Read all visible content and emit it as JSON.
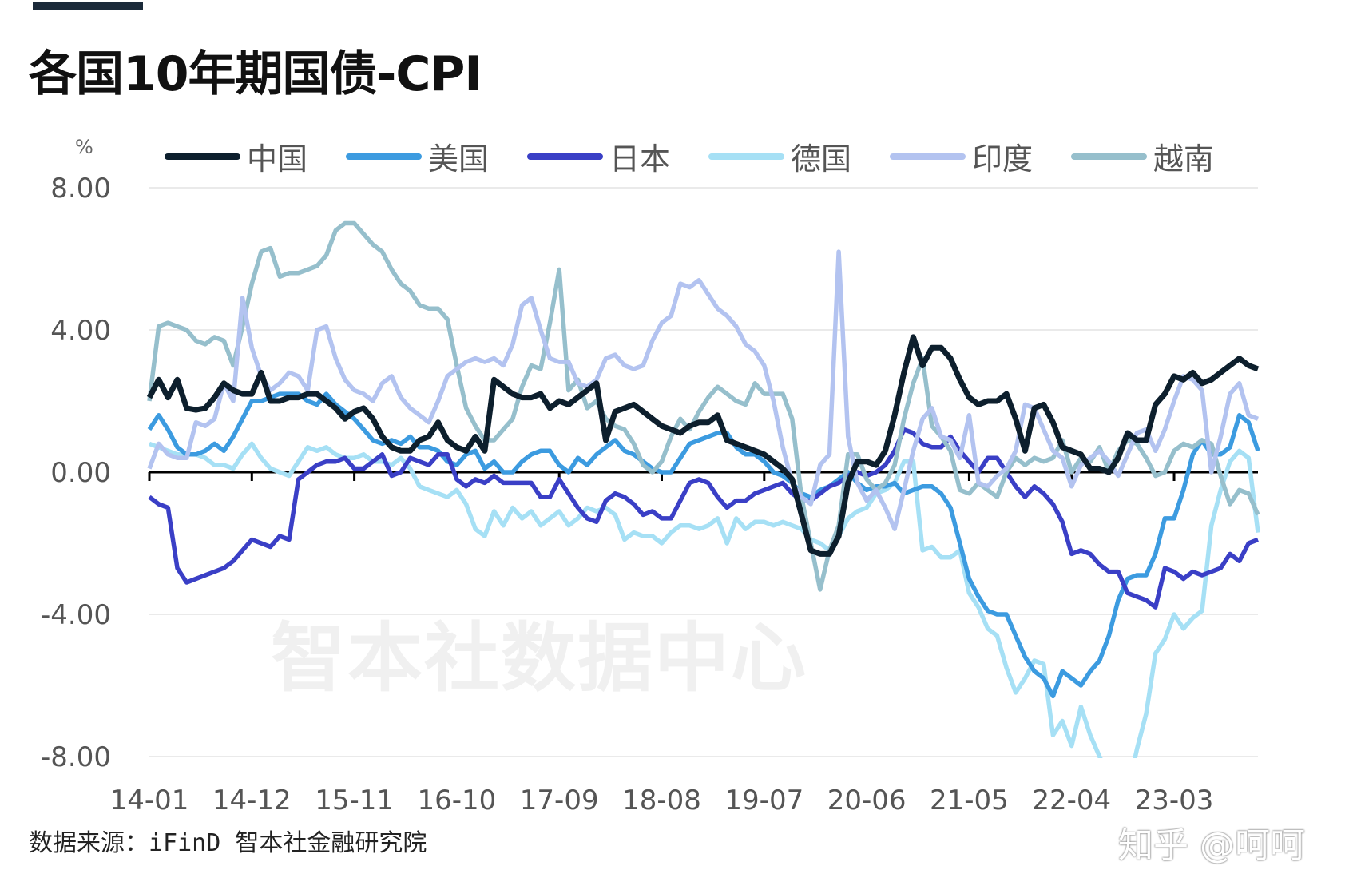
{
  "header": {
    "title": "各国10年期国债-CPI"
  },
  "source": "数据来源：iFinD 智本社金融研究院",
  "watermark": "智本社数据中心",
  "platform_watermark": "知乎 @呵呵",
  "chart_data": {
    "type": "line",
    "title": "各国10年期国债-CPI",
    "ylabel": "%",
    "ylim": [
      -8,
      8
    ],
    "yticks": [
      "8.00",
      "4.00",
      "0.00",
      "-4.00",
      "-8.00"
    ],
    "ytick_values": [
      8,
      4,
      0,
      -4,
      -8
    ],
    "xticks": [
      "14-01",
      "14-12",
      "15-11",
      "16-10",
      "17-09",
      "18-08",
      "19-07",
      "20-06",
      "21-05",
      "22-04",
      "23-03"
    ],
    "x": [
      "14-01",
      "14-02",
      "14-03",
      "14-04",
      "14-05",
      "14-06",
      "14-07",
      "14-08",
      "14-09",
      "14-10",
      "14-11",
      "14-12",
      "15-01",
      "15-02",
      "15-03",
      "15-04",
      "15-05",
      "15-06",
      "15-07",
      "15-08",
      "15-09",
      "15-10",
      "15-11",
      "15-12",
      "16-01",
      "16-02",
      "16-03",
      "16-04",
      "16-05",
      "16-06",
      "16-07",
      "16-08",
      "16-09",
      "16-10",
      "16-11",
      "16-12",
      "17-01",
      "17-02",
      "17-03",
      "17-04",
      "17-05",
      "17-06",
      "17-07",
      "17-08",
      "17-09",
      "17-10",
      "17-11",
      "17-12",
      "18-01",
      "18-02",
      "18-03",
      "18-04",
      "18-05",
      "18-06",
      "18-07",
      "18-08",
      "18-09",
      "18-10",
      "18-11",
      "18-12",
      "19-01",
      "19-02",
      "19-03",
      "19-04",
      "19-05",
      "19-06",
      "19-07",
      "19-08",
      "19-09",
      "19-10",
      "19-11",
      "19-12",
      "20-01",
      "20-02",
      "20-03",
      "20-04",
      "20-05",
      "20-06",
      "20-07",
      "20-08",
      "20-09",
      "20-10",
      "20-11",
      "20-12",
      "21-01",
      "21-02",
      "21-03",
      "21-04",
      "21-05",
      "21-06",
      "21-07",
      "21-08",
      "21-09",
      "21-10",
      "21-11",
      "21-12",
      "22-01",
      "22-02",
      "22-03",
      "22-04",
      "22-05",
      "22-06",
      "22-07",
      "22-08",
      "22-09",
      "22-10",
      "22-11",
      "22-12",
      "23-01",
      "23-02",
      "23-03",
      "23-04",
      "23-05",
      "23-06",
      "23-07",
      "23-08",
      "23-09",
      "23-10",
      "23-11",
      "23-12"
    ],
    "grid": true,
    "legend": "top",
    "series": [
      {
        "name": "中国",
        "color": "#0d1f2d",
        "values": [
          2.1,
          2.6,
          2.1,
          2.6,
          1.8,
          1.75,
          1.8,
          2.1,
          2.5,
          2.3,
          2.2,
          2.2,
          2.8,
          2.0,
          2.0,
          2.1,
          2.1,
          2.2,
          2.2,
          2.0,
          1.8,
          1.5,
          1.7,
          1.8,
          1.5,
          1.0,
          0.7,
          0.6,
          0.6,
          0.9,
          1.0,
          1.4,
          0.9,
          0.7,
          0.6,
          1.0,
          0.6,
          2.6,
          2.4,
          2.2,
          2.1,
          2.1,
          2.2,
          1.8,
          2.0,
          1.9,
          2.1,
          2.3,
          2.5,
          0.9,
          1.7,
          1.8,
          1.9,
          1.7,
          1.5,
          1.3,
          1.2,
          1.1,
          1.3,
          1.4,
          1.4,
          1.6,
          0.9,
          0.8,
          0.7,
          0.6,
          0.5,
          0.3,
          0.1,
          -0.2,
          -1.2,
          -2.2,
          -2.3,
          -2.3,
          -1.8,
          -0.3,
          0.3,
          0.3,
          0.2,
          0.6,
          1.6,
          2.8,
          3.8,
          3.0,
          3.5,
          3.5,
          3.2,
          2.6,
          2.1,
          1.9,
          2.0,
          2.0,
          2.2,
          1.5,
          0.6,
          1.8,
          1.9,
          1.4,
          0.7,
          0.6,
          0.5,
          0.1,
          0.1,
          0.0,
          0.4,
          1.1,
          0.9,
          0.9,
          1.9,
          2.2,
          2.7,
          2.6,
          2.8,
          2.5,
          2.6,
          2.8,
          3.0,
          3.2,
          3.0,
          2.9
        ]
      },
      {
        "name": "美国",
        "color": "#3c9be0",
        "values": [
          1.2,
          1.6,
          1.2,
          0.7,
          0.5,
          0.5,
          0.6,
          0.8,
          0.6,
          1.0,
          1.5,
          2.0,
          2.0,
          2.1,
          2.2,
          2.2,
          2.2,
          2.0,
          1.9,
          2.2,
          1.9,
          1.7,
          1.5,
          1.2,
          0.9,
          0.8,
          0.9,
          0.8,
          1.0,
          0.7,
          0.7,
          0.6,
          0.3,
          0.2,
          0.5,
          0.6,
          0.1,
          0.3,
          0.0,
          0.0,
          0.3,
          0.5,
          0.6,
          0.6,
          0.2,
          0.0,
          0.4,
          0.2,
          0.5,
          0.7,
          0.9,
          0.6,
          0.5,
          0.3,
          0.1,
          0.0,
          0.0,
          0.4,
          0.8,
          0.9,
          1.0,
          1.1,
          1.1,
          0.7,
          0.5,
          0.5,
          0.3,
          0.0,
          -0.1,
          -0.3,
          -0.6,
          -0.7,
          -0.5,
          -0.4,
          -0.2,
          0.0,
          -0.3,
          -0.5,
          -0.4,
          -0.4,
          -0.3,
          -0.6,
          -0.5,
          -0.4,
          -0.4,
          -0.6,
          -1.0,
          -2.0,
          -3.0,
          -3.5,
          -3.9,
          -4.0,
          -4.0,
          -4.6,
          -5.2,
          -5.6,
          -5.8,
          -6.3,
          -5.6,
          -5.8,
          -6.0,
          -5.6,
          -5.3,
          -4.6,
          -3.6,
          -3.0,
          -2.9,
          -2.9,
          -2.3,
          -1.3,
          -1.3,
          -0.5,
          0.5,
          0.9,
          0.5,
          0.5,
          0.7,
          1.6,
          1.4,
          0.6
        ]
      },
      {
        "name": "日本",
        "color": "#3a3fc6",
        "values": [
          -0.7,
          -0.9,
          -1.0,
          -2.7,
          -3.1,
          -3.0,
          -2.9,
          -2.8,
          -2.7,
          -2.5,
          -2.2,
          -1.9,
          -2.0,
          -2.1,
          -1.8,
          -1.9,
          -0.2,
          0.0,
          0.2,
          0.3,
          0.3,
          0.4,
          0.1,
          0.1,
          0.3,
          0.5,
          -0.1,
          0.0,
          0.4,
          0.3,
          0.2,
          0.5,
          0.5,
          -0.2,
          -0.4,
          -0.2,
          -0.3,
          -0.1,
          -0.3,
          -0.3,
          -0.3,
          -0.3,
          -0.7,
          -0.7,
          -0.2,
          -0.6,
          -1.0,
          -1.3,
          -1.4,
          -0.8,
          -0.6,
          -0.7,
          -0.9,
          -1.2,
          -1.1,
          -1.3,
          -1.3,
          -0.8,
          -0.3,
          -0.2,
          -0.3,
          -0.7,
          -1.0,
          -0.8,
          -0.8,
          -0.6,
          -0.5,
          -0.4,
          -0.3,
          -0.6,
          -0.8,
          -0.8,
          -0.6,
          -0.4,
          -0.3,
          -0.1,
          0.0,
          -0.1,
          0.0,
          0.2,
          0.6,
          1.2,
          1.1,
          0.8,
          0.7,
          0.7,
          1.0,
          0.6,
          0.3,
          0.0,
          0.4,
          0.4,
          0.0,
          -0.4,
          -0.7,
          -0.4,
          -0.6,
          -0.9,
          -1.4,
          -2.3,
          -2.2,
          -2.3,
          -2.6,
          -2.8,
          -2.8,
          -3.4,
          -3.5,
          -3.6,
          -3.8,
          -2.7,
          -2.8,
          -3.0,
          -2.8,
          -2.9,
          -2.8,
          -2.7,
          -2.3,
          -2.5,
          -2.0,
          -1.9
        ]
      },
      {
        "name": "德国",
        "color": "#a6e0f5",
        "values": [
          0.8,
          0.7,
          0.6,
          0.5,
          0.5,
          0.5,
          0.4,
          0.2,
          0.2,
          0.1,
          0.5,
          0.8,
          0.4,
          0.1,
          0.0,
          -0.1,
          0.3,
          0.7,
          0.6,
          0.7,
          0.5,
          0.4,
          0.4,
          0.5,
          0.3,
          0.3,
          0.2,
          0.4,
          0.1,
          -0.4,
          -0.5,
          -0.6,
          -0.7,
          -0.5,
          -0.9,
          -1.6,
          -1.8,
          -1.1,
          -1.5,
          -1.0,
          -1.3,
          -1.1,
          -1.5,
          -1.3,
          -1.1,
          -1.5,
          -1.3,
          -1.0,
          -1.1,
          -1.0,
          -1.2,
          -1.9,
          -1.7,
          -1.8,
          -1.8,
          -2.0,
          -1.7,
          -1.5,
          -1.5,
          -1.6,
          -1.5,
          -1.3,
          -2.0,
          -1.3,
          -1.6,
          -1.4,
          -1.4,
          -1.5,
          -1.4,
          -1.5,
          -1.6,
          -1.9,
          -2.0,
          -2.2,
          -1.8,
          -1.3,
          -1.1,
          -1.0,
          -0.6,
          -0.5,
          -0.3,
          0.3,
          0.3,
          -2.2,
          -2.1,
          -2.4,
          -2.4,
          -2.2,
          -3.4,
          -3.8,
          -4.4,
          -4.6,
          -5.5,
          -6.2,
          -5.8,
          -5.3,
          -5.4,
          -7.4,
          -7.0,
          -7.7,
          -6.6,
          -7.4,
          -8.0,
          -8.6,
          -9.5,
          -9.0,
          -7.8,
          -6.8,
          -5.1,
          -4.7,
          -4.0,
          -4.4,
          -4.1,
          -3.9,
          -1.5,
          -0.5,
          0.3,
          0.6,
          0.4,
          -1.7
        ]
      },
      {
        "name": "印度",
        "color": "#b3c3f0",
        "values": [
          0.1,
          0.8,
          0.5,
          0.4,
          0.4,
          1.4,
          1.3,
          1.5,
          2.5,
          2.0,
          4.9,
          3.5,
          2.7,
          2.3,
          2.5,
          2.8,
          2.7,
          2.3,
          4.0,
          4.1,
          3.2,
          2.6,
          2.3,
          2.2,
          2.0,
          2.5,
          2.7,
          2.1,
          1.8,
          1.6,
          1.4,
          2.0,
          2.7,
          2.9,
          3.1,
          3.2,
          3.1,
          3.2,
          3.0,
          3.6,
          4.7,
          4.9,
          4.0,
          3.2,
          3.1,
          3.1,
          2.5,
          2.4,
          2.6,
          3.2,
          3.3,
          3.0,
          2.9,
          3.0,
          3.7,
          4.2,
          4.4,
          5.3,
          5.2,
          5.4,
          5.0,
          4.6,
          4.4,
          4.1,
          3.6,
          3.4,
          3.0,
          2.0,
          0.7,
          -0.3,
          -0.7,
          -0.9,
          0.2,
          0.5,
          6.2,
          1.0,
          -0.3,
          -0.8,
          -0.5,
          -1.0,
          -1.6,
          -0.5,
          0.6,
          1.5,
          1.8,
          1.0,
          0.9,
          0.4,
          1.6,
          -0.3,
          -0.4,
          -0.1,
          0.1,
          0.6,
          1.9,
          1.8,
          1.2,
          0.6,
          0.4,
          -0.4,
          0.2,
          0.4,
          0.6,
          0.3,
          -0.1,
          0.5,
          1.1,
          1.2,
          0.6,
          1.2,
          2.0,
          2.7,
          2.6,
          2.3,
          0.0,
          1.0,
          2.2,
          2.5,
          1.6,
          1.5
        ]
      },
      {
        "name": "越南",
        "color": "#96bfcc",
        "values": [
          2.0,
          4.1,
          4.2,
          4.1,
          4.0,
          3.7,
          3.6,
          3.8,
          3.7,
          3.0,
          4.1,
          5.3,
          6.2,
          6.3,
          5.5,
          5.6,
          5.6,
          5.7,
          5.8,
          6.1,
          6.8,
          7.0,
          7.0,
          6.7,
          6.4,
          6.2,
          5.7,
          5.3,
          5.1,
          4.7,
          4.6,
          4.6,
          4.3,
          3.0,
          1.8,
          1.3,
          0.9,
          0.9,
          1.2,
          1.5,
          2.4,
          3.0,
          2.9,
          4.2,
          5.7,
          2.3,
          2.6,
          1.8,
          2.0,
          1.5,
          1.3,
          1.2,
          0.8,
          0.2,
          0.0,
          0.3,
          1.0,
          1.5,
          1.2,
          1.7,
          2.1,
          2.4,
          2.2,
          2.0,
          1.9,
          2.5,
          2.2,
          2.2,
          2.2,
          1.5,
          -0.7,
          -2.0,
          -3.3,
          -2.2,
          -1.5,
          0.5,
          0.5,
          -0.2,
          -0.5,
          -0.3,
          0.2,
          1.5,
          2.5,
          3.2,
          1.3,
          1.0,
          0.6,
          -0.5,
          -0.6,
          -0.3,
          -0.5,
          -0.7,
          0.0,
          0.4,
          0.2,
          0.4,
          0.3,
          0.4,
          0.9,
          0.0,
          0.4,
          0.3,
          0.7,
          0.0,
          0.6,
          0.9,
          0.8,
          0.4,
          -0.1,
          0.0,
          0.6,
          0.8,
          0.7,
          0.9,
          0.8,
          -0.1,
          -0.9,
          -0.5,
          -0.6,
          -1.2
        ]
      }
    ]
  }
}
